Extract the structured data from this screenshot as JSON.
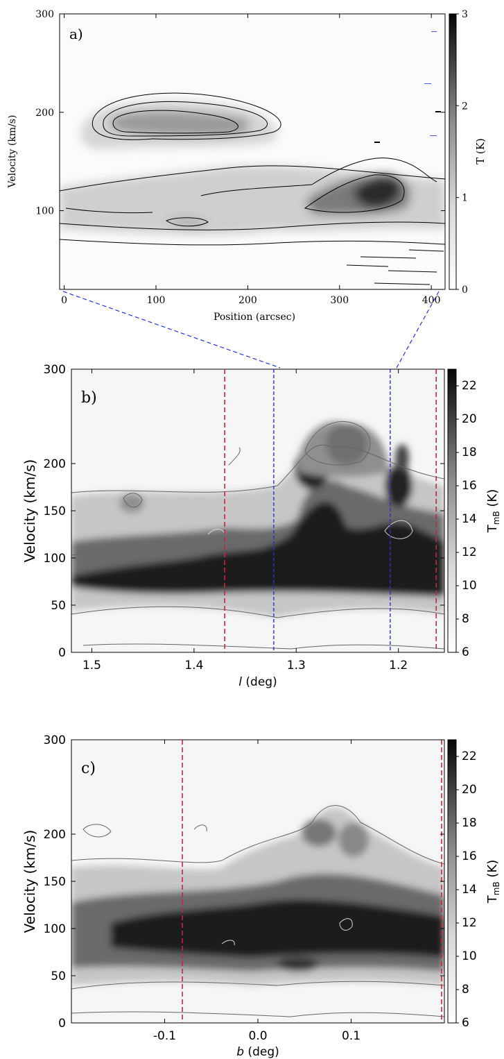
{
  "chart_data": [
    {
      "panel": "a)",
      "type": "heatmap",
      "xlabel": "Position (arcsec)",
      "ylabel": "Velocity (km/s)",
      "xlim": [
        -5,
        415
      ],
      "ylim": [
        20,
        300
      ],
      "xticks": [
        0,
        100,
        200,
        300,
        400
      ],
      "yticks": [
        100,
        200,
        300
      ],
      "colorbar": {
        "label": "T (K)",
        "range": [
          0,
          3
        ],
        "ticks": [
          0,
          1,
          2,
          3
        ]
      },
      "features": [
        {
          "x": 150,
          "y": 185,
          "value": 1.8
        },
        {
          "x": 340,
          "y": 112,
          "value": 2.8
        },
        {
          "x": 200,
          "y": 105,
          "value": 1.0
        },
        {
          "x": 100,
          "y": 95,
          "value": 1.0
        }
      ]
    },
    {
      "panel": "b)",
      "type": "heatmap",
      "xlabel": "l (deg)",
      "ylabel": "Velocity (km/s)",
      "xlim": [
        1.52,
        1.155
      ],
      "ylim": [
        0,
        300
      ],
      "xticks": [
        1.5,
        1.4,
        1.3,
        1.2
      ],
      "yticks": [
        0,
        50,
        100,
        150,
        200,
        300
      ],
      "colorbar": {
        "label_main": "T",
        "label_sub": "mB",
        "label_unit": " (K)",
        "range": [
          6,
          23
        ],
        "ticks": [
          6,
          8,
          10,
          12,
          14,
          16,
          18,
          20,
          22
        ]
      },
      "vlines_red": [
        1.37,
        1.163
      ],
      "vlines_blue": [
        1.322,
        1.208
      ],
      "features": [
        {
          "x": 1.45,
          "y": 90,
          "value": 18
        },
        {
          "x": 1.34,
          "y": 95,
          "value": 20
        },
        {
          "x": 1.28,
          "y": 100,
          "value": 22
        },
        {
          "x": 1.22,
          "y": 110,
          "value": 22
        },
        {
          "x": 1.26,
          "y": 185,
          "value": 16
        }
      ]
    },
    {
      "panel": "c)",
      "type": "heatmap",
      "xlabel": "b (deg)",
      "ylabel": "Velocity (km/s)",
      "xlim": [
        -0.2,
        0.2
      ],
      "ylim": [
        0,
        300
      ],
      "xticks": [
        -0.1,
        0.0,
        0.1
      ],
      "yticks": [
        0,
        50,
        100,
        150,
        200,
        300
      ],
      "colorbar": {
        "label_main": "T",
        "label_sub": "mB",
        "label_unit": " (K)",
        "range": [
          6,
          23
        ],
        "ticks": [
          6,
          8,
          10,
          12,
          14,
          16,
          18,
          20,
          22
        ]
      },
      "vlines_red": [
        -0.081,
        0.197
      ],
      "features": [
        {
          "x": -0.05,
          "y": 100,
          "value": 20
        },
        {
          "x": 0.05,
          "y": 100,
          "value": 22
        },
        {
          "x": 0.1,
          "y": 180,
          "value": 16
        },
        {
          "x": 0.18,
          "y": 100,
          "value": 20
        }
      ]
    }
  ],
  "labels": {
    "panel_a": "a)",
    "panel_b": "b)",
    "panel_c": "c)",
    "a_xlabel": "Position (arcsec)",
    "a_ylabel": "Velocity (km/s)",
    "a_cbar": "T (K)",
    "b_xlabel_var": "l",
    "b_xlabel_unit": " (deg)",
    "b_ylabel": "Velocity (km/s)",
    "c_xlabel_var": "b",
    "c_xlabel_unit": " (deg)",
    "c_ylabel": "Velocity (km/s)",
    "cbar_main": "T",
    "cbar_sub": "mB",
    "cbar_unit": " (K)"
  },
  "colors": {
    "red_dash": "#d0203a",
    "blue_dash": "#2233dd",
    "axis": "#000000"
  }
}
